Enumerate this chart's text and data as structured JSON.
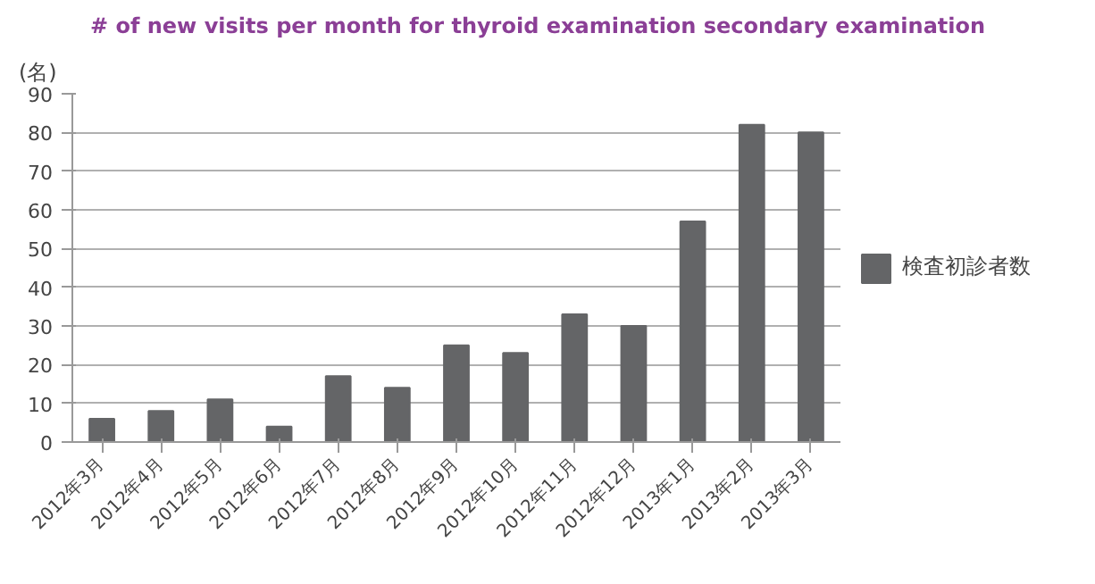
{
  "chart_data": {
    "type": "bar",
    "title": "# of new visits per month for thyroid examination secondary examination",
    "ylabel": "(名)",
    "categories": [
      "2012年3月",
      "2012年4月",
      "2012年5月",
      "2012年6月",
      "2012年7月",
      "2012年8月",
      "2012年9月",
      "2012年10月",
      "2012年11月",
      "2012年12月",
      "2013年1月",
      "2013年2月",
      "2013年3月"
    ],
    "series": [
      {
        "name": "検査初診者数",
        "color": "#646567",
        "values": [
          6,
          8,
          11,
          4,
          17,
          14,
          25,
          23,
          33,
          30,
          57,
          82,
          80
        ]
      }
    ],
    "ylim": [
      0,
      90
    ],
    "yticks": [
      0,
      10,
      20,
      30,
      40,
      50,
      60,
      70,
      80,
      90
    ],
    "grid": "y",
    "legend": "right"
  }
}
